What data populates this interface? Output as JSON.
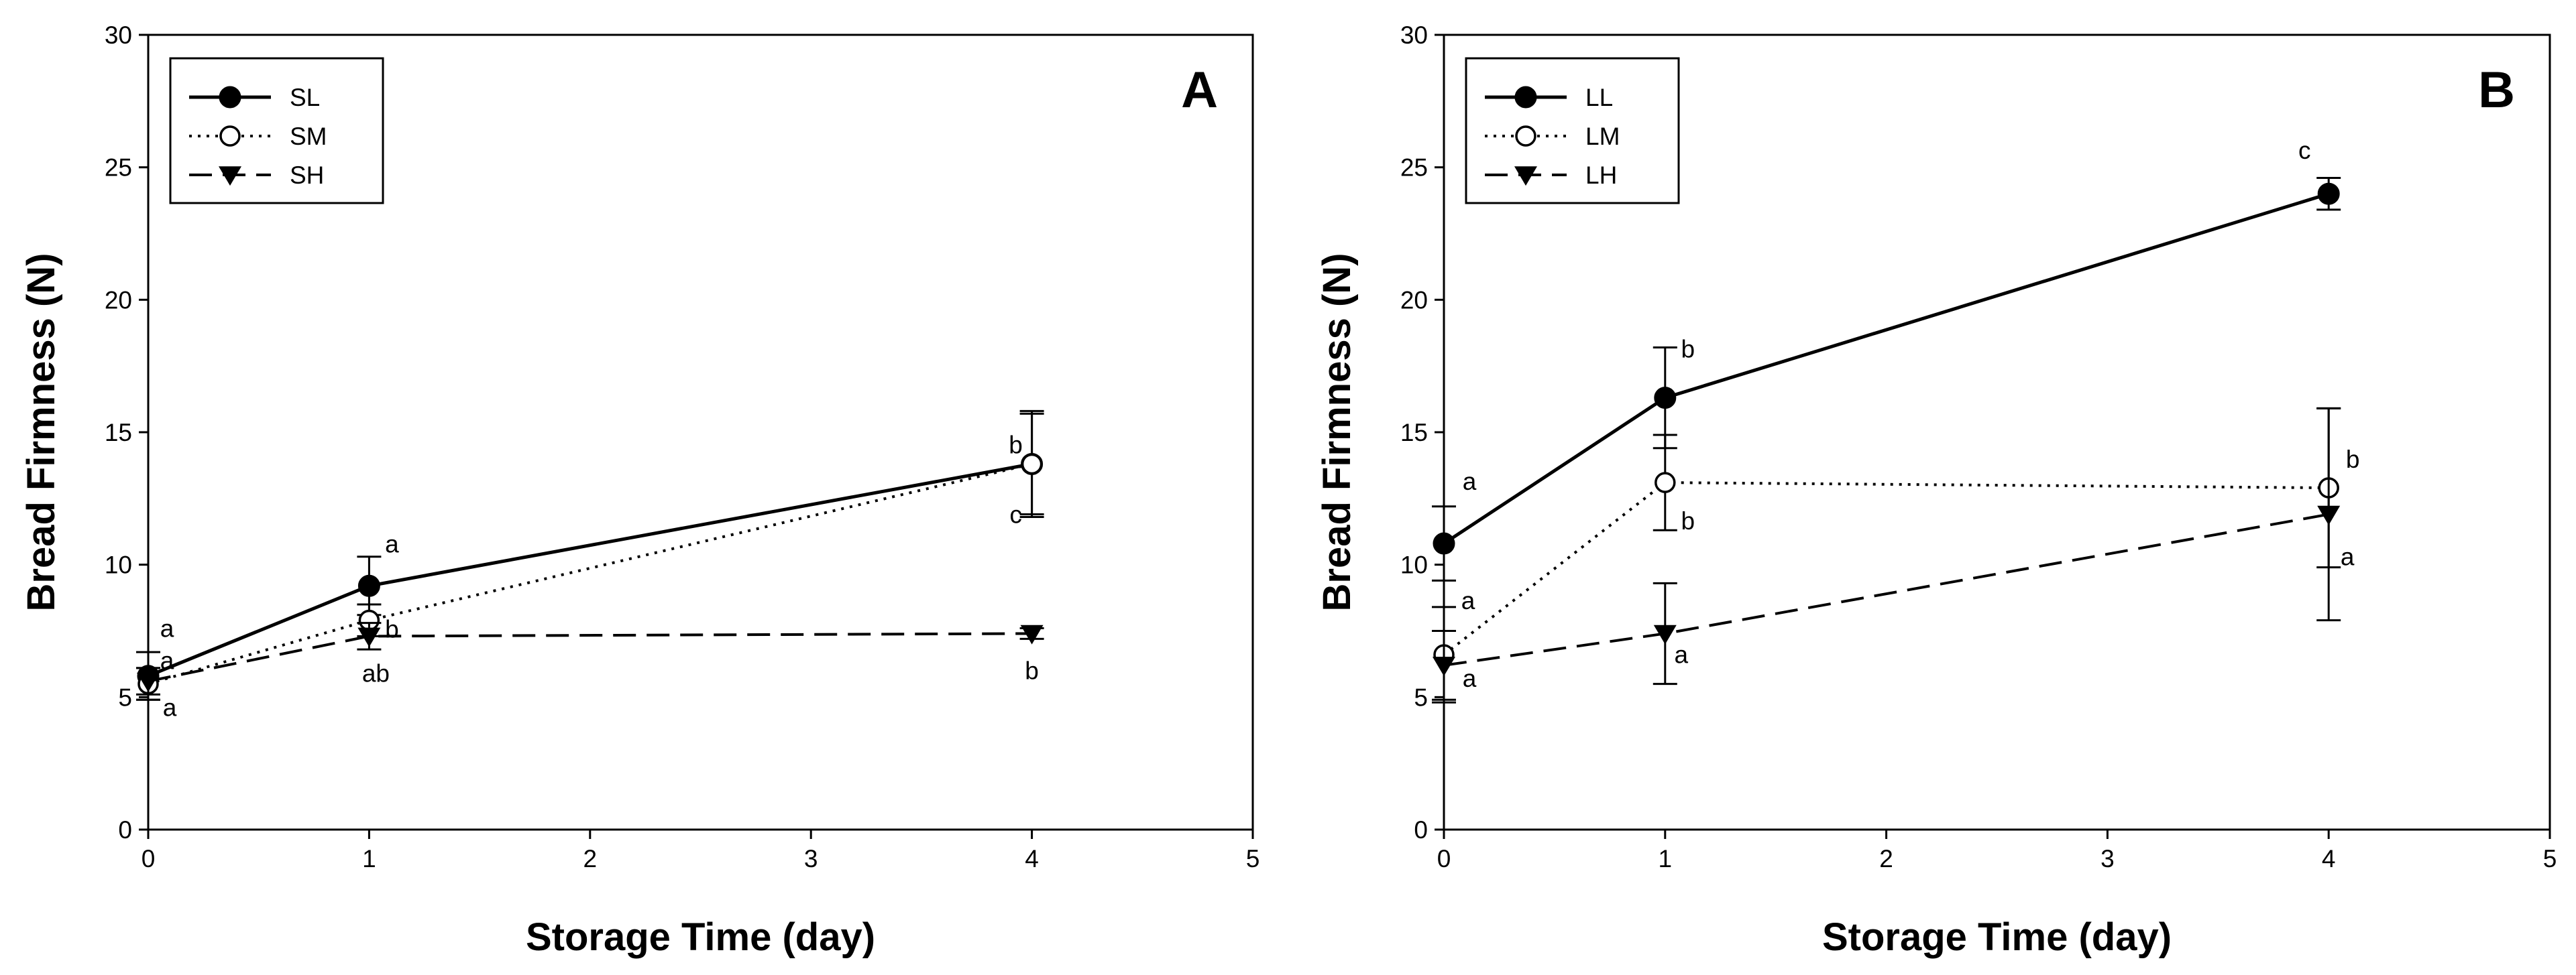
{
  "chart_data": [
    {
      "type": "line",
      "panel_label": "A",
      "xlabel": "Storage Time (day)",
      "ylabel": "Bread Firmness (N)",
      "xlim": [
        0,
        5
      ],
      "ylim": [
        0,
        30
      ],
      "xticks": [
        "0",
        "1",
        "2",
        "3",
        "4",
        "5"
      ],
      "yticks": [
        "0",
        "5",
        "10",
        "15",
        "20",
        "25",
        "30"
      ],
      "legend_position": "top-left",
      "series": [
        {
          "name": "SL",
          "style": "solid",
          "marker": "filled-circle",
          "x": [
            0,
            1,
            4
          ],
          "y": [
            5.8,
            9.2,
            13.8
          ],
          "err": [
            0.9,
            1.1,
            1.9
          ],
          "letters": [
            "a",
            "a",
            "b"
          ]
        },
        {
          "name": "SM",
          "style": "dotted",
          "marker": "open-circle",
          "x": [
            0,
            1,
            4
          ],
          "y": [
            5.5,
            7.9,
            13.8
          ],
          "err": [
            0.6,
            0.6,
            2.0
          ],
          "letters": [
            "a",
            "b",
            "c"
          ]
        },
        {
          "name": "SH",
          "style": "dashed",
          "marker": "filled-triangle-down",
          "x": [
            0,
            1,
            4
          ],
          "y": [
            5.6,
            7.3,
            7.4
          ],
          "err": [
            0.5,
            0.5,
            0.2
          ],
          "letters": [
            "a",
            "ab",
            "b"
          ]
        }
      ]
    },
    {
      "type": "line",
      "panel_label": "B",
      "xlabel": "Storage Time (day)",
      "ylabel": "Bread Firmness (N)",
      "xlim": [
        0,
        5
      ],
      "ylim": [
        0,
        30
      ],
      "xticks": [
        "0",
        "1",
        "2",
        "3",
        "4",
        "5"
      ],
      "yticks": [
        "0",
        "5",
        "10",
        "15",
        "20",
        "25",
        "30"
      ],
      "legend_position": "top-left",
      "series": [
        {
          "name": "LL",
          "style": "solid",
          "marker": "filled-circle",
          "x": [
            0,
            1,
            4
          ],
          "y": [
            10.8,
            16.3,
            24.0
          ],
          "err": [
            1.4,
            1.9,
            0.6
          ],
          "letters": [
            "a",
            "b",
            "c"
          ]
        },
        {
          "name": "LM",
          "style": "dotted",
          "marker": "open-circle",
          "x": [
            0,
            1,
            4
          ],
          "y": [
            6.6,
            13.1,
            12.9
          ],
          "err": [
            1.8,
            1.8,
            3.0
          ],
          "letters": [
            "a",
            "b",
            "b"
          ]
        },
        {
          "name": "LH",
          "style": "dashed",
          "marker": "filled-triangle-down",
          "x": [
            0,
            1,
            4
          ],
          "y": [
            6.2,
            7.4,
            11.9
          ],
          "err": [
            1.3,
            1.9,
            4.0
          ],
          "letters": [
            "a",
            "a",
            "a"
          ]
        }
      ]
    }
  ]
}
